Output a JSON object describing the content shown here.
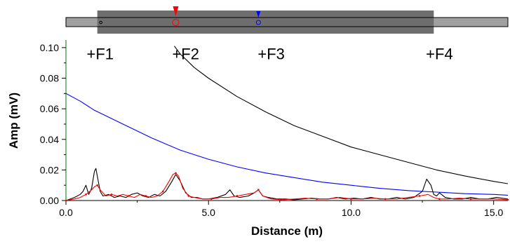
{
  "chart_data": {
    "type": "line",
    "title": "",
    "xlabel": "Distance (m)",
    "ylabel": "Amp (mV)",
    "xlim": [
      0,
      15.5
    ],
    "ylim": [
      0,
      0.105
    ],
    "xticks": [
      0,
      5,
      10,
      15
    ],
    "xtick_labels": [
      "0.0",
      "5.0",
      "10.0",
      "15.0"
    ],
    "yticks": [
      0,
      0.02,
      0.04,
      0.06,
      0.08,
      0.1
    ],
    "ytick_labels": [
      "0.00",
      "0.02",
      "0.04",
      "0.06",
      "0.08",
      "0.10"
    ],
    "grid": false,
    "annotations": [
      {
        "text": "+F1",
        "x": 1.2,
        "y": 0.096
      },
      {
        "text": "+F2",
        "x": 4.2,
        "y": 0.096
      },
      {
        "text": "+F3",
        "x": 7.2,
        "y": 0.096
      },
      {
        "text": "+F4",
        "x": 13.1,
        "y": 0.096
      }
    ],
    "series": [
      {
        "color": "#000000",
        "style": "threshold-curve",
        "x": [
          3.8,
          4.0,
          4.5,
          5.0,
          6.0,
          7.0,
          8.0,
          9.0,
          10.0,
          11.0,
          12.0,
          13.0,
          14.0,
          15.0,
          15.5
        ],
        "values": [
          0.101,
          0.096,
          0.087,
          0.08,
          0.068,
          0.058,
          0.049,
          0.042,
          0.035,
          0.03,
          0.025,
          0.02,
          0.016,
          0.0125,
          0.011
        ]
      },
      {
        "color": "#0000ff",
        "style": "threshold-curve",
        "x": [
          0.0,
          0.5,
          1.0,
          2.0,
          3.0,
          4.0,
          5.0,
          6.0,
          7.0,
          8.0,
          9.0,
          10.0,
          11.0,
          12.0,
          13.0,
          14.0,
          15.0,
          15.5
        ],
        "values": [
          0.07,
          0.065,
          0.059,
          0.05,
          0.041,
          0.033,
          0.027,
          0.022,
          0.018,
          0.015,
          0.012,
          0.01,
          0.008,
          0.0065,
          0.0055,
          0.0045,
          0.004,
          0.0035
        ]
      },
      {
        "color": "#000000",
        "style": "trace",
        "x": [
          0.0,
          0.3,
          0.5,
          0.6,
          0.7,
          0.8,
          0.9,
          1.0,
          1.05,
          1.1,
          1.2,
          1.3,
          1.5,
          1.7,
          1.9,
          2.1,
          2.3,
          2.5,
          2.7,
          2.9,
          3.1,
          3.3,
          3.5,
          3.7,
          3.85,
          4.0,
          4.2,
          4.4,
          4.6,
          4.8,
          5.0,
          5.3,
          5.6,
          5.75,
          5.9,
          6.1,
          6.4,
          6.6,
          6.75,
          6.9,
          7.1,
          7.4,
          7.7,
          8.0,
          8.3,
          8.6,
          8.9,
          9.2,
          9.5,
          9.8,
          10.1,
          10.4,
          10.7,
          11.0,
          11.3,
          11.6,
          11.9,
          12.2,
          12.5,
          12.65,
          12.8,
          12.9,
          13.0,
          13.1,
          13.3,
          13.6,
          13.9,
          14.2,
          14.5,
          14.8,
          15.1,
          15.5
        ],
        "values": [
          0.0,
          0.002,
          0.004,
          0.006,
          0.01,
          0.004,
          0.008,
          0.019,
          0.021,
          0.016,
          0.006,
          0.003,
          0.004,
          0.002,
          0.003,
          0.002,
          0.004,
          0.005,
          0.003,
          0.002,
          0.004,
          0.003,
          0.006,
          0.012,
          0.017,
          0.013,
          0.005,
          0.002,
          0.002,
          0.001,
          0.001,
          0.002,
          0.004,
          0.007,
          0.003,
          0.002,
          0.003,
          0.005,
          0.007,
          0.003,
          0.002,
          0.001,
          0.001,
          0.0005,
          0.001,
          0.0015,
          0.001,
          0.001,
          0.002,
          0.001,
          0.0015,
          0.001,
          0.002,
          0.001,
          0.001,
          0.002,
          0.001,
          0.002,
          0.006,
          0.014,
          0.01,
          0.004,
          0.003,
          0.005,
          0.002,
          0.001,
          0.001,
          0.002,
          0.001,
          0.001,
          0.002,
          0.001
        ]
      },
      {
        "color": "#ff0000",
        "style": "trace",
        "x": [
          0.0,
          0.3,
          0.5,
          0.7,
          0.9,
          1.0,
          1.1,
          1.2,
          1.4,
          1.6,
          1.8,
          2.0,
          2.2,
          2.4,
          2.6,
          2.8,
          3.0,
          3.2,
          3.4,
          3.6,
          3.75,
          3.85,
          3.95,
          4.1,
          4.3,
          4.5,
          4.8,
          5.1,
          5.4,
          5.7,
          6.0,
          6.3,
          6.6,
          6.75,
          6.9,
          7.2,
          7.6,
          8.0,
          8.4,
          8.8,
          9.2,
          9.6,
          10.0,
          10.4,
          10.8,
          11.2,
          11.6,
          12.0,
          12.4,
          12.7,
          12.9,
          13.1,
          13.4,
          13.8,
          14.2,
          14.6,
          15.0,
          15.5
        ],
        "values": [
          0.0,
          0.001,
          0.002,
          0.004,
          0.007,
          0.009,
          0.01,
          0.007,
          0.003,
          0.004,
          0.003,
          0.004,
          0.003,
          0.002,
          0.004,
          0.003,
          0.002,
          0.003,
          0.006,
          0.012,
          0.017,
          0.018,
          0.016,
          0.008,
          0.003,
          0.002,
          0.001,
          0.001,
          0.002,
          0.002,
          0.003,
          0.004,
          0.005,
          0.007,
          0.003,
          0.001,
          0.0005,
          0.001,
          0.0015,
          0.001,
          0.001,
          0.002,
          0.001,
          0.001,
          0.0015,
          0.001,
          0.001,
          0.002,
          0.003,
          0.004,
          0.002,
          0.001,
          0.001,
          0.0015,
          0.001,
          0.001,
          0.001,
          0.0005
        ]
      }
    ],
    "scale_bar": {
      "outer_range_m": [
        0.0,
        15.5
      ],
      "inner_range_m": [
        1.1,
        12.9
      ],
      "markers": [
        {
          "x": 1.1,
          "color": "#000000",
          "shape": "dot"
        },
        {
          "x": 3.85,
          "color": "#ff0000",
          "shape": "arrow-circle"
        },
        {
          "x": 6.75,
          "color": "#0000ff",
          "shape": "arrow-circle"
        }
      ]
    }
  }
}
